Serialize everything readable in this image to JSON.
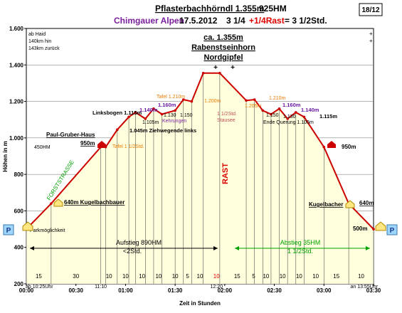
{
  "header": {
    "title_part1": "Pflasterbachhörndl 1.355m",
    "title_part2": "925HM",
    "subtitle_region": "Chimgauer Alpen",
    "subtitle_date": "17.5.2012",
    "subtitle_time1": "3 1/4",
    "subtitle_time2": "+1/4Rast",
    "subtitle_time3": "= 3 1/2Std.",
    "sheet_number": "18/12"
  },
  "colors": {
    "profile_line": "#cc0000",
    "area_fill": "#ffffdd",
    "title_purple": "#7a1f9c",
    "orange": "#e87b00",
    "green": "#00a000",
    "purple": "#6a1aa0",
    "rast": "#dd0000"
  },
  "chart_data": {
    "type": "area",
    "ylabel": "Höhen in m",
    "xlabel": "Zeit in Stunden",
    "ylim": [
      200,
      1600
    ],
    "xlim_minutes": [
      0,
      210
    ],
    "y_ticks": [
      "200",
      "400",
      "600",
      "800",
      "1.000",
      "1.200",
      "1.400",
      "1.600"
    ],
    "x_ticks": [
      {
        "min": 0,
        "label": "00:00"
      },
      {
        "min": 30,
        "label": "00:30"
      },
      {
        "min": 60,
        "label": "01:00"
      },
      {
        "min": 90,
        "label": "01:30"
      },
      {
        "min": 120,
        "label": "02:00"
      },
      {
        "min": 150,
        "label": "02:30"
      },
      {
        "min": 180,
        "label": "03:00"
      },
      {
        "min": 210,
        "label": "03:30"
      }
    ],
    "time_labels_below": [
      {
        "min": 0,
        "label": "ab 10:25Uhr"
      },
      {
        "min": 45,
        "label": "11:10"
      },
      {
        "min": 115,
        "label": "12:20"
      },
      {
        "min": 210,
        "label": "an 13:55Uhr"
      }
    ],
    "segments": [
      {
        "min": 7.5,
        "label": "15"
      },
      {
        "min": 30,
        "label": "30"
      },
      {
        "min": 50,
        "label": "10"
      },
      {
        "min": 60,
        "label": "10"
      },
      {
        "min": 70,
        "label": "10"
      },
      {
        "min": 80,
        "label": "10"
      },
      {
        "min": 90,
        "label": "10"
      },
      {
        "min": 97.5,
        "label": "5"
      },
      {
        "min": 105,
        "label": "10"
      },
      {
        "min": 115,
        "label": "10"
      },
      {
        "min": 127.5,
        "label": "15"
      },
      {
        "min": 137.5,
        "label": "5"
      },
      {
        "min": 145,
        "label": "10"
      },
      {
        "min": 155,
        "label": "10"
      },
      {
        "min": 165,
        "label": "10"
      },
      {
        "min": 175,
        "label": "10"
      },
      {
        "min": 187.5,
        "label": "15"
      },
      {
        "min": 202.5,
        "label": "10"
      }
    ],
    "profile": [
      {
        "t": 0,
        "h": 500
      },
      {
        "t": 15,
        "h": 640
      },
      {
        "t": 45,
        "h": 950
      },
      {
        "t": 48,
        "h": 950
      },
      {
        "t": 55,
        "h": 1045
      },
      {
        "t": 62,
        "h": 1115
      },
      {
        "t": 66,
        "h": 1140
      },
      {
        "t": 72,
        "h": 1105
      },
      {
        "t": 77,
        "h": 1160
      },
      {
        "t": 82,
        "h": 1130
      },
      {
        "t": 90,
        "h": 1150
      },
      {
        "t": 95,
        "h": 1210
      },
      {
        "t": 100,
        "h": 1200
      },
      {
        "t": 107,
        "h": 1355
      },
      {
        "t": 117,
        "h": 1355
      },
      {
        "t": 133,
        "h": 1205
      },
      {
        "t": 138,
        "h": 1210
      },
      {
        "t": 143,
        "h": 1150
      },
      {
        "t": 148,
        "h": 1130
      },
      {
        "t": 153,
        "h": 1160
      },
      {
        "t": 158,
        "h": 1105
      },
      {
        "t": 163,
        "h": 1140
      },
      {
        "t": 168,
        "h": 1115
      },
      {
        "t": 180,
        "h": 950
      },
      {
        "t": 195,
        "h": 640
      },
      {
        "t": 210,
        "h": 500
      }
    ],
    "annotations": {
      "legend_lines": [
        "ab Haid",
        "140km hin",
        "143km zurück"
      ],
      "summit_name": [
        "ca. 1.355m",
        "Rabenstseinhorn",
        "Nordgipfel"
      ],
      "paul_gruber": "Paul-Gruber-Haus",
      "hm450": "450HM",
      "m950_left": "950m",
      "tafel_1_12": "Tafel 1 1/2Std.",
      "forststrasse": "FORSTSTRASSE",
      "kugelbachbauer": "640m Kugelbachbauer",
      "parkmoeglichkeit": "Parkmöglichkeit",
      "linksbogen": "Linksbogen 1.115m",
      "m1140_left": "1.140m",
      "m1105_left": "1.105m",
      "ziehwegende": "1.045m Ziehwegende links",
      "m1160_left": "1.160m",
      "m1130_left": "1.130",
      "m1150_left": "1.150",
      "kehrungen": "Kehrungen",
      "tafel_1210": "Tafel 1.210m",
      "m1200": "1.200m",
      "stausee": [
        "1 1/2Std.",
        "Stausee"
      ],
      "rast": "RAST",
      "m1205": "1.205m",
      "m1210_right": "1.210m",
      "m1150_right": "1.150",
      "m1160_right": "1.160m",
      "m1130_right": "1.130",
      "m1140_right": "1.140m",
      "m1115_right": "1.115m",
      "ende_querung": "Ende Querung 1.105m",
      "m950_right": "950m",
      "kugelbacher": "Kugelbacher",
      "m640_right": "640m",
      "m500_right": "500m",
      "aufstieg": [
        "Aufstieg 890HM",
        "<2Std."
      ],
      "abstieg": [
        "Abstieg 35HM",
        "1 1/2Std."
      ],
      "p_marker": "P",
      "summit_cross": "+",
      "corner_plus": "+"
    }
  }
}
